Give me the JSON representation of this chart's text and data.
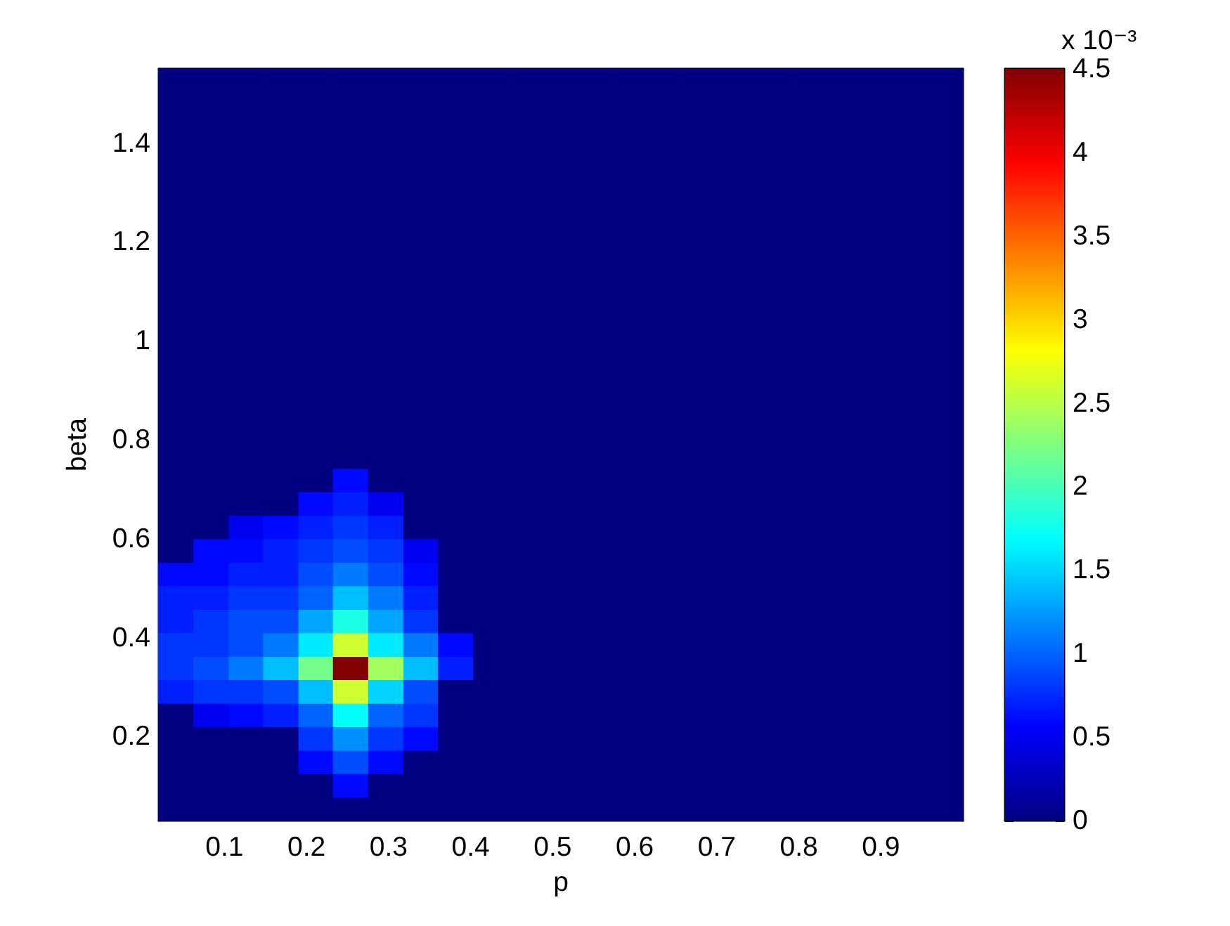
{
  "chart_data": {
    "type": "scatter",
    "marker": "square",
    "xlabel": "p",
    "ylabel": "beta",
    "clabel": "x 10⁻³",
    "x": [
      0.041,
      0.084,
      0.127,
      0.169,
      0.212,
      0.254,
      0.297,
      0.34,
      0.382,
      0.425,
      0.467,
      0.51,
      0.553,
      0.595,
      0.638,
      0.68,
      0.723,
      0.766,
      0.808,
      0.851,
      0.894,
      0.936,
      0.979,
      0.041,
      0.084,
      0.127,
      0.169,
      0.212,
      0.254,
      0.297,
      0.34,
      0.382,
      0.425,
      0.467,
      0.51,
      0.553,
      0.595,
      0.638,
      0.68,
      0.723,
      0.766,
      0.808,
      0.851,
      0.894,
      0.936,
      0.979,
      0.041,
      0.084,
      0.127,
      0.169,
      0.212,
      0.254,
      0.297,
      0.34,
      0.382,
      0.425,
      0.467,
      0.51,
      0.553,
      0.595,
      0.638,
      0.68,
      0.723,
      0.766,
      0.808,
      0.851,
      0.894,
      0.936,
      0.979,
      0.041,
      0.084,
      0.127,
      0.169,
      0.212,
      0.254,
      0.297,
      0.34,
      0.382,
      0.425,
      0.467,
      0.51,
      0.553,
      0.595,
      0.638,
      0.68,
      0.723,
      0.766,
      0.808,
      0.851,
      0.894,
      0.936,
      0.979,
      0.041,
      0.084,
      0.127,
      0.169,
      0.212,
      0.254,
      0.297,
      0.34,
      0.382,
      0.425,
      0.467,
      0.51,
      0.553,
      0.595,
      0.638,
      0.68,
      0.723,
      0.766,
      0.808,
      0.851,
      0.894,
      0.936,
      0.979,
      0.041,
      0.084,
      0.127,
      0.169,
      0.212,
      0.254,
      0.297,
      0.34,
      0.382,
      0.425,
      0.467,
      0.51,
      0.553,
      0.595,
      0.638,
      0.68,
      0.723,
      0.766,
      0.808,
      0.851,
      0.894,
      0.936,
      0.979,
      0.041,
      0.084,
      0.127,
      0.169,
      0.212,
      0.254,
      0.297,
      0.34,
      0.382,
      0.425,
      0.467,
      0.51,
      0.553,
      0.595,
      0.638,
      0.68,
      0.723,
      0.766,
      0.808,
      0.851,
      0.894,
      0.936,
      0.979,
      0.041,
      0.084,
      0.127,
      0.169,
      0.212,
      0.254,
      0.297,
      0.34,
      0.382,
      0.425,
      0.467,
      0.51,
      0.553,
      0.595,
      0.638,
      0.68,
      0.723,
      0.766,
      0.808,
      0.851,
      0.894,
      0.936,
      0.979,
      0.041,
      0.084,
      0.127,
      0.169,
      0.212,
      0.254,
      0.297,
      0.34,
      0.382,
      0.425,
      0.467,
      0.51,
      0.553,
      0.595,
      0.638,
      0.68,
      0.723,
      0.766,
      0.808,
      0.851,
      0.894,
      0.936,
      0.979,
      0.041,
      0.084,
      0.127,
      0.169,
      0.212,
      0.254,
      0.297,
      0.34,
      0.382,
      0.425,
      0.467,
      0.51,
      0.553,
      0.595,
      0.638,
      0.68,
      0.723,
      0.766,
      0.808,
      0.851,
      0.894,
      0.936,
      0.979,
      0.041,
      0.084,
      0.127,
      0.169,
      0.212,
      0.254,
      0.297,
      0.34,
      0.382,
      0.425,
      0.467,
      0.51,
      0.553,
      0.595,
      0.638,
      0.68,
      0.723,
      0.766,
      0.808,
      0.851,
      0.894,
      0.936,
      0.979,
      0.041,
      0.084,
      0.127,
      0.169,
      0.212,
      0.254,
      0.297,
      0.34,
      0.382,
      0.425,
      0.467,
      0.51,
      0.553,
      0.595,
      0.638,
      0.68,
      0.723,
      0.766,
      0.808,
      0.851,
      0.894,
      0.936,
      0.979,
      0.041,
      0.084,
      0.127,
      0.169,
      0.212,
      0.254,
      0.297,
      0.34,
      0.382,
      0.425,
      0.467,
      0.51,
      0.553,
      0.595,
      0.638,
      0.68,
      0.723,
      0.766,
      0.808,
      0.851,
      0.894,
      0.936,
      0.979,
      0.041,
      0.084,
      0.127,
      0.169,
      0.212,
      0.254,
      0.297,
      0.34,
      0.382,
      0.425,
      0.467,
      0.51,
      0.553,
      0.595,
      0.638,
      0.68,
      0.723,
      0.766,
      0.808,
      0.851,
      0.894,
      0.936,
      0.979,
      0.041,
      0.084,
      0.127,
      0.169,
      0.212,
      0.254,
      0.297,
      0.34,
      0.382,
      0.425,
      0.467,
      0.51,
      0.553,
      0.595,
      0.638,
      0.68,
      0.723,
      0.766,
      0.808,
      0.851,
      0.894,
      0.936,
      0.979,
      0.041,
      0.084,
      0.127,
      0.169,
      0.212,
      0.254,
      0.297,
      0.34,
      0.382,
      0.425,
      0.467,
      0.51,
      0.553,
      0.595,
      0.638,
      0.68,
      0.723,
      0.766,
      0.808,
      0.851,
      0.894,
      0.936,
      0.979,
      0.041,
      0.084,
      0.127,
      0.169,
      0.212,
      0.254,
      0.297,
      0.34,
      0.382,
      0.425,
      0.467,
      0.51,
      0.553,
      0.595,
      0.638,
      0.68,
      0.723,
      0.766,
      0.808,
      0.851,
      0.894,
      0.936,
      0.979,
      0.041,
      0.084,
      0.127,
      0.169,
      0.212,
      0.254,
      0.297,
      0.34,
      0.382,
      0.425,
      0.467,
      0.51,
      0.553,
      0.595,
      0.638,
      0.68,
      0.723,
      0.766,
      0.808,
      0.851,
      0.894,
      0.936,
      0.979,
      0.041,
      0.084,
      0.127,
      0.169,
      0.212,
      0.254,
      0.297,
      0.34,
      0.382,
      0.425,
      0.467,
      0.51,
      0.553,
      0.595,
      0.638,
      0.68,
      0.723,
      0.766,
      0.808,
      0.851,
      0.894,
      0.936,
      0.979,
      0.041,
      0.084,
      0.127,
      0.169,
      0.212,
      0.254,
      0.297,
      0.34,
      0.382,
      0.425,
      0.467,
      0.51,
      0.553,
      0.595,
      0.638,
      0.68,
      0.723,
      0.766,
      0.808,
      0.851,
      0.894,
      0.936,
      0.979,
      0.041,
      0.084,
      0.127,
      0.169,
      0.212,
      0.254,
      0.297,
      0.34,
      0.382,
      0.425,
      0.467,
      0.51,
      0.553,
      0.595,
      0.638,
      0.68,
      0.723,
      0.766,
      0.808,
      0.851,
      0.894,
      0.936,
      0.979,
      0.041,
      0.084,
      0.127,
      0.169,
      0.212,
      0.254,
      0.297,
      0.34,
      0.382,
      0.425,
      0.467,
      0.51,
      0.553,
      0.595,
      0.638,
      0.68,
      0.723,
      0.766,
      0.808,
      0.851,
      0.894,
      0.936,
      0.979,
      0.041,
      0.084,
      0.127,
      0.169,
      0.212,
      0.254,
      0.297,
      0.34,
      0.382,
      0.425,
      0.467,
      0.51,
      0.553,
      0.595,
      0.638,
      0.68,
      0.723,
      0.766,
      0.808,
      0.851,
      0.894,
      0.936,
      0.979,
      0.041,
      0.084,
      0.127,
      0.169,
      0.212,
      0.254,
      0.297,
      0.34,
      0.382,
      0.425,
      0.467,
      0.51,
      0.553,
      0.595,
      0.638,
      0.68,
      0.723,
      0.766,
      0.808,
      0.851,
      0.894,
      0.936,
      0.979,
      0.041,
      0.084,
      0.127,
      0.169,
      0.212,
      0.254,
      0.297,
      0.34,
      0.382,
      0.425,
      0.467,
      0.51,
      0.553,
      0.595,
      0.638,
      0.68,
      0.723,
      0.766,
      0.808,
      0.851,
      0.894,
      0.936,
      0.979,
      0.041,
      0.084,
      0.127,
      0.169,
      0.212,
      0.254,
      0.297,
      0.34,
      0.382,
      0.425,
      0.467,
      0.51,
      0.553,
      0.595,
      0.638,
      0.68,
      0.723,
      0.766,
      0.808,
      0.851,
      0.894,
      0.936,
      0.979,
      0.041,
      0.084,
      0.127,
      0.169,
      0.212,
      0.254,
      0.297,
      0.34,
      0.382,
      0.425,
      0.467,
      0.51,
      0.553,
      0.595,
      0.638,
      0.68,
      0.723,
      0.766,
      0.808,
      0.851,
      0.894,
      0.936,
      0.979,
      0.041,
      0.084,
      0.127,
      0.169,
      0.212,
      0.254,
      0.297,
      0.34,
      0.382,
      0.425,
      0.467,
      0.51,
      0.553,
      0.595,
      0.638,
      0.68,
      0.723,
      0.766,
      0.808,
      0.851,
      0.894,
      0.936,
      0.979,
      0.041,
      0.084,
      0.127,
      0.169,
      0.212,
      0.254,
      0.297,
      0.34,
      0.382,
      0.425,
      0.467,
      0.51,
      0.553,
      0.595,
      0.638,
      0.68,
      0.723,
      0.766,
      0.808,
      0.851,
      0.894,
      0.936,
      0.979,
      0.041,
      0.084,
      0.127,
      0.169,
      0.212,
      0.254,
      0.297,
      0.34,
      0.382,
      0.425,
      0.467,
      0.51,
      0.553,
      0.595,
      0.638,
      0.68,
      0.723,
      0.766,
      0.808,
      0.851,
      0.894,
      0.936,
      0.979,
      0.041,
      0.084,
      0.127,
      0.169,
      0.212,
      0.254,
      0.297,
      0.34,
      0.382,
      0.425,
      0.467,
      0.51,
      0.553,
      0.595,
      0.638,
      0.68,
      0.723,
      0.766,
      0.808,
      0.851,
      0.894,
      0.936,
      0.979,
      0.041,
      0.084,
      0.127,
      0.169,
      0.212,
      0.254,
      0.297,
      0.34,
      0.382,
      0.425,
      0.467,
      0.51,
      0.553,
      0.595,
      0.638,
      0.68,
      0.723,
      0.766,
      0.808,
      0.851,
      0.894,
      0.936,
      0.979
    ],
    "values": [
      0.054,
      0.054,
      0.054,
      0.054,
      0.054,
      0.054,
      0.054,
      0.054,
      0.054,
      0.054,
      0.054,
      0.054,
      0.054,
      0.054,
      0.054,
      0.054,
      0.054,
      0.054,
      0.054,
      0.054,
      0.054,
      0.054,
      0.054,
      0.101,
      0.101,
      0.101,
      0.101,
      0.101,
      0.101,
      0.101,
      0.101,
      0.101,
      0.101,
      0.101,
      0.101,
      0.101,
      0.101,
      0.101,
      0.101,
      0.101,
      0.101,
      0.101,
      0.101,
      0.101,
      0.101,
      0.101,
      0.149,
      0.149,
      0.149,
      0.149,
      0.149,
      0.149,
      0.149,
      0.149,
      0.149,
      0.149,
      0.149,
      0.149,
      0.149,
      0.149,
      0.149,
      0.149,
      0.149,
      0.149,
      0.149,
      0.149,
      0.149,
      0.149,
      0.149,
      0.196,
      0.196,
      0.196,
      0.196,
      0.196,
      0.196,
      0.196,
      0.196,
      0.196,
      0.196,
      0.196,
      0.196,
      0.196,
      0.196,
      0.196,
      0.196,
      0.196,
      0.196,
      0.196,
      0.196,
      0.196,
      0.196,
      0.196,
      0.244,
      0.244,
      0.244,
      0.244,
      0.244,
      0.244,
      0.244,
      0.244,
      0.244,
      0.244,
      0.244,
      0.244,
      0.244,
      0.244,
      0.244,
      0.244,
      0.244,
      0.244,
      0.244,
      0.244,
      0.244,
      0.244,
      0.244,
      0.291,
      0.291,
      0.291,
      0.291,
      0.291,
      0.291,
      0.291,
      0.291,
      0.291,
      0.291,
      0.291,
      0.291,
      0.291,
      0.291,
      0.291,
      0.291,
      0.291,
      0.291,
      0.291,
      0.291,
      0.291,
      0.291,
      0.291,
      0.339,
      0.339,
      0.339,
      0.339,
      0.339,
      0.339,
      0.339,
      0.339,
      0.339,
      0.339,
      0.339,
      0.339,
      0.339,
      0.339,
      0.339,
      0.339,
      0.339,
      0.339,
      0.339,
      0.339,
      0.339,
      0.339,
      0.339,
      0.386,
      0.386,
      0.386,
      0.386,
      0.386,
      0.386,
      0.386,
      0.386,
      0.386,
      0.386,
      0.386,
      0.386,
      0.386,
      0.386,
      0.386,
      0.386,
      0.386,
      0.386,
      0.386,
      0.386,
      0.386,
      0.386,
      0.386,
      0.434,
      0.434,
      0.434,
      0.434,
      0.434,
      0.434,
      0.434,
      0.434,
      0.434,
      0.434,
      0.434,
      0.434,
      0.434,
      0.434,
      0.434,
      0.434,
      0.434,
      0.434,
      0.434,
      0.434,
      0.434,
      0.434,
      0.434,
      0.481,
      0.481,
      0.481,
      0.481,
      0.481,
      0.481,
      0.481,
      0.481,
      0.481,
      0.481,
      0.481,
      0.481,
      0.481,
      0.481,
      0.481,
      0.481,
      0.481,
      0.481,
      0.481,
      0.481,
      0.481,
      0.481,
      0.481,
      0.529,
      0.529,
      0.529,
      0.529,
      0.529,
      0.529,
      0.529,
      0.529,
      0.529,
      0.529,
      0.529,
      0.529,
      0.529,
      0.529,
      0.529,
      0.529,
      0.529,
      0.529,
      0.529,
      0.529,
      0.529,
      0.529,
      0.529,
      0.576,
      0.576,
      0.576,
      0.576,
      0.576,
      0.576,
      0.576,
      0.576,
      0.576,
      0.576,
      0.576,
      0.576,
      0.576,
      0.576,
      0.576,
      0.576,
      0.576,
      0.576,
      0.576,
      0.576,
      0.576,
      0.576,
      0.576,
      0.624,
      0.624,
      0.624,
      0.624,
      0.624,
      0.624,
      0.624,
      0.624,
      0.624,
      0.624,
      0.624,
      0.624,
      0.624,
      0.624,
      0.624,
      0.624,
      0.624,
      0.624,
      0.624,
      0.624,
      0.624,
      0.624,
      0.624,
      0.671,
      0.671,
      0.671,
      0.671,
      0.671,
      0.671,
      0.671,
      0.671,
      0.671,
      0.671,
      0.671,
      0.671,
      0.671,
      0.671,
      0.671,
      0.671,
      0.671,
      0.671,
      0.671,
      0.671,
      0.671,
      0.671,
      0.671,
      0.719,
      0.719,
      0.719,
      0.719,
      0.719,
      0.719,
      0.719,
      0.719,
      0.719,
      0.719,
      0.719,
      0.719,
      0.719,
      0.719,
      0.719,
      0.719,
      0.719,
      0.719,
      0.719,
      0.719,
      0.719,
      0.719,
      0.719,
      0.766,
      0.766,
      0.766,
      0.766,
      0.766,
      0.766,
      0.766,
      0.766,
      0.766,
      0.766,
      0.766,
      0.766,
      0.766,
      0.766,
      0.766,
      0.766,
      0.766,
      0.766,
      0.766,
      0.766,
      0.766,
      0.766,
      0.766,
      0.814,
      0.814,
      0.814,
      0.814,
      0.814,
      0.814,
      0.814,
      0.814,
      0.814,
      0.814,
      0.814,
      0.814,
      0.814,
      0.814,
      0.814,
      0.814,
      0.814,
      0.814,
      0.814,
      0.814,
      0.814,
      0.814,
      0.814,
      0.861,
      0.861,
      0.861,
      0.861,
      0.861,
      0.861,
      0.861,
      0.861,
      0.861,
      0.861,
      0.861,
      0.861,
      0.861,
      0.861,
      0.861,
      0.861,
      0.861,
      0.861,
      0.861,
      0.861,
      0.861,
      0.861,
      0.861,
      0.909,
      0.909,
      0.909,
      0.909,
      0.909,
      0.909,
      0.909,
      0.909,
      0.909,
      0.909,
      0.909,
      0.909,
      0.909,
      0.909,
      0.909,
      0.909,
      0.909,
      0.909,
      0.909,
      0.909,
      0.909,
      0.909,
      0.909,
      0.956,
      0.956,
      0.956,
      0.956,
      0.956,
      0.956,
      0.956,
      0.956,
      0.956,
      0.956,
      0.956,
      0.956,
      0.956,
      0.956,
      0.956,
      0.956,
      0.956,
      0.956,
      0.956,
      0.956,
      0.956,
      0.956,
      0.956,
      1.004,
      1.004,
      1.004,
      1.004,
      1.004,
      1.004,
      1.004,
      1.004,
      1.004,
      1.004,
      1.004,
      1.004,
      1.004,
      1.004,
      1.004,
      1.004,
      1.004,
      1.004,
      1.004,
      1.004,
      1.004,
      1.004,
      1.004,
      1.051,
      1.051,
      1.051,
      1.051,
      1.051,
      1.051,
      1.051,
      1.051,
      1.051,
      1.051,
      1.051,
      1.051,
      1.051,
      1.051,
      1.051,
      1.051,
      1.051,
      1.051,
      1.051,
      1.051,
      1.051,
      1.051,
      1.051,
      1.099,
      1.099,
      1.099,
      1.099,
      1.099,
      1.099,
      1.099,
      1.099,
      1.099,
      1.099,
      1.099,
      1.099,
      1.099,
      1.099,
      1.099,
      1.099,
      1.099,
      1.099,
      1.099,
      1.099,
      1.099,
      1.099,
      1.099,
      1.146,
      1.146,
      1.146,
      1.146,
      1.146,
      1.146,
      1.146,
      1.146,
      1.146,
      1.146,
      1.146,
      1.146,
      1.146,
      1.146,
      1.146,
      1.146,
      1.146,
      1.146,
      1.146,
      1.146,
      1.146,
      1.146,
      1.146,
      1.194,
      1.194,
      1.194,
      1.194,
      1.194,
      1.194,
      1.194,
      1.194,
      1.194,
      1.194,
      1.194,
      1.194,
      1.194,
      1.194,
      1.194,
      1.194,
      1.194,
      1.194,
      1.194,
      1.194,
      1.194,
      1.194,
      1.194,
      1.241,
      1.241,
      1.241,
      1.241,
      1.241,
      1.241,
      1.241,
      1.241,
      1.241,
      1.241,
      1.241,
      1.241,
      1.241,
      1.241,
      1.241,
      1.241,
      1.241,
      1.241,
      1.241,
      1.241,
      1.241,
      1.241,
      1.241,
      1.289,
      1.289,
      1.289,
      1.289,
      1.289,
      1.289,
      1.289,
      1.289,
      1.289,
      1.289,
      1.289,
      1.289,
      1.289,
      1.289,
      1.289,
      1.289,
      1.289,
      1.289,
      1.289,
      1.289,
      1.289,
      1.289,
      1.289,
      1.336,
      1.336,
      1.336,
      1.336,
      1.336,
      1.336,
      1.336,
      1.336,
      1.336,
      1.336,
      1.336,
      1.336,
      1.336,
      1.336,
      1.336,
      1.336,
      1.336,
      1.336,
      1.336,
      1.336,
      1.336,
      1.336,
      1.336,
      1.384,
      1.384,
      1.384,
      1.384,
      1.384,
      1.384,
      1.384,
      1.384,
      1.384,
      1.384,
      1.384,
      1.384,
      1.384,
      1.384,
      1.384,
      1.384,
      1.384,
      1.384,
      1.384,
      1.384,
      1.384,
      1.384,
      1.384,
      1.431,
      1.431,
      1.431,
      1.431,
      1.431,
      1.431,
      1.431,
      1.431,
      1.431,
      1.431,
      1.431,
      1.431,
      1.431,
      1.431,
      1.431,
      1.431,
      1.431,
      1.431,
      1.431,
      1.431,
      1.431,
      1.431,
      1.431,
      1.479,
      1.479,
      1.479,
      1.479,
      1.479,
      1.479,
      1.479,
      1.479,
      1.479,
      1.479,
      1.479,
      1.479,
      1.479,
      1.479,
      1.479,
      1.479,
      1.479,
      1.479,
      1.479,
      1.479,
      1.479,
      1.479,
      1.479,
      1.526,
      1.526,
      1.526,
      1.526,
      1.526,
      1.526,
      1.526,
      1.526,
      1.526,
      1.526,
      1.526,
      1.526,
      1.526,
      1.526,
      1.526,
      1.526,
      1.526,
      1.526,
      1.526,
      1.526,
      1.526,
      1.526,
      1.526
    ],
    "cvalues": [
      0,
      0,
      0,
      0,
      0,
      0,
      0,
      0,
      0,
      0,
      0,
      0,
      0,
      0,
      0,
      0,
      0,
      0,
      0,
      0,
      0,
      0,
      0,
      0,
      0,
      0,
      0,
      0,
      0.6,
      0,
      0,
      0,
      0,
      0,
      0,
      0,
      0,
      0,
      0,
      0,
      0,
      0,
      0,
      0,
      0,
      0,
      0,
      0,
      0,
      0,
      0.6,
      0.9,
      0.6,
      0,
      0,
      0,
      0,
      0,
      0,
      0,
      0,
      0,
      0,
      0,
      0,
      0,
      0,
      0,
      0,
      0,
      0,
      0,
      0,
      0.8,
      1.2,
      0.8,
      0.6,
      0,
      0,
      0,
      0,
      0,
      0,
      0,
      0,
      0,
      0,
      0,
      0,
      0,
      0,
      0,
      0,
      0.5,
      0.6,
      0.7,
      1.0,
      1.7,
      1.0,
      0.8,
      0,
      0,
      0,
      0,
      0,
      0,
      0,
      0,
      0,
      0,
      0,
      0,
      0,
      0,
      0,
      0.7,
      0.8,
      0.8,
      0.9,
      1.4,
      2.6,
      1.5,
      0.9,
      0,
      0,
      0,
      0,
      0,
      0,
      0,
      0,
      0,
      0,
      0,
      0,
      0,
      0,
      0,
      0.8,
      0.9,
      1.1,
      1.4,
      2.2,
      4.5,
      2.4,
      1.4,
      0.7,
      0,
      0,
      0,
      0,
      0,
      0,
      0,
      0,
      0,
      0,
      0,
      0,
      0,
      0,
      0.8,
      0.8,
      0.9,
      1.1,
      1.6,
      2.6,
      1.6,
      1.1,
      0.6,
      0,
      0,
      0,
      0,
      0,
      0,
      0,
      0,
      0,
      0,
      0,
      0,
      0,
      0,
      0.7,
      0.8,
      0.9,
      0.9,
      1.3,
      1.8,
      1.3,
      0.8,
      0,
      0,
      0,
      0,
      0,
      0,
      0,
      0,
      0,
      0,
      0,
      0,
      0,
      0,
      0,
      0.7,
      0.7,
      0.8,
      0.8,
      1.0,
      1.4,
      1.1,
      0.7,
      0,
      0,
      0,
      0,
      0,
      0,
      0,
      0,
      0,
      0,
      0,
      0,
      0,
      0,
      0,
      0.6,
      0.6,
      0.7,
      0.7,
      0.9,
      1.1,
      0.9,
      0.6,
      0,
      0,
      0,
      0,
      0,
      0,
      0,
      0,
      0,
      0,
      0,
      0,
      0,
      0,
      0,
      0,
      0.6,
      0.6,
      0.7,
      0.8,
      0.9,
      0.8,
      0.5,
      0,
      0,
      0,
      0,
      0,
      0,
      0,
      0,
      0,
      0,
      0,
      0,
      0,
      0,
      0,
      0,
      0,
      0.5,
      0.6,
      0.7,
      0.8,
      0.7,
      0,
      0,
      0,
      0,
      0,
      0,
      0,
      0,
      0,
      0,
      0,
      0,
      0,
      0,
      0,
      0,
      0,
      0,
      0,
      0,
      0.6,
      0.7,
      0.5,
      0,
      0,
      0,
      0,
      0,
      0,
      0,
      0,
      0,
      0,
      0,
      0,
      0,
      0,
      0,
      0,
      0,
      0,
      0,
      0,
      0,
      0.6,
      0,
      0,
      0,
      0,
      0,
      0,
      0,
      0,
      0,
      0,
      0,
      0,
      0,
      0,
      0,
      0,
      0,
      0,
      0,
      0,
      0,
      0,
      0,
      0,
      0,
      0,
      0,
      0,
      0,
      0,
      0,
      0,
      0,
      0,
      0,
      0,
      0,
      0,
      0,
      0,
      0,
      0,
      0,
      0,
      0,
      0,
      0,
      0,
      0,
      0,
      0,
      0,
      0,
      0,
      0,
      0,
      0,
      0,
      0,
      0,
      0,
      0,
      0,
      0,
      0,
      0,
      0,
      0,
      0,
      0,
      0,
      0,
      0,
      0,
      0,
      0,
      0,
      0,
      0,
      0,
      0,
      0,
      0,
      0,
      0,
      0,
      0,
      0,
      0,
      0,
      0,
      0,
      0,
      0,
      0,
      0,
      0,
      0,
      0,
      0,
      0,
      0,
      0,
      0,
      0,
      0,
      0,
      0,
      0,
      0,
      0,
      0,
      0,
      0,
      0,
      0,
      0,
      0,
      0,
      0,
      0,
      0,
      0,
      0,
      0,
      0,
      0,
      0,
      0,
      0,
      0,
      0,
      0,
      0,
      0,
      0,
      0,
      0,
      0,
      0,
      0,
      0,
      0,
      0,
      0,
      0,
      0,
      0,
      0,
      0,
      0,
      0,
      0,
      0,
      0,
      0,
      0,
      0,
      0,
      0,
      0,
      0,
      0,
      0,
      0,
      0,
      0,
      0,
      0,
      0,
      0,
      0,
      0,
      0,
      0,
      0,
      0,
      0,
      0,
      0,
      0,
      0,
      0,
      0,
      0,
      0,
      0,
      0,
      0,
      0,
      0,
      0,
      0,
      0,
      0,
      0,
      0,
      0,
      0,
      0,
      0,
      0,
      0,
      0,
      0,
      0,
      0,
      0,
      0,
      0,
      0,
      0,
      0,
      0,
      0,
      0,
      0,
      0,
      0,
      0,
      0,
      0,
      0,
      0,
      0,
      0,
      0,
      0,
      0,
      0,
      0,
      0,
      0,
      0,
      0,
      0,
      0,
      0,
      0,
      0,
      0,
      0,
      0,
      0,
      0,
      0,
      0,
      0,
      0,
      0,
      0,
      0,
      0,
      0,
      0,
      0,
      0,
      0,
      0,
      0,
      0,
      0,
      0,
      0,
      0,
      0,
      0,
      0,
      0,
      0,
      0,
      0,
      0,
      0,
      0,
      0,
      0,
      0,
      0,
      0,
      0,
      0,
      0,
      0,
      0,
      0,
      0,
      0,
      0,
      0,
      0,
      0,
      0,
      0,
      0,
      0,
      0,
      0,
      0,
      0,
      0,
      0,
      0,
      0,
      0,
      0,
      0,
      0,
      0,
      0,
      0,
      0,
      0,
      0,
      0,
      0,
      0,
      0,
      0,
      0,
      0,
      0,
      0,
      0,
      0,
      0,
      0,
      0,
      0,
      0,
      0,
      0,
      0,
      0,
      0,
      0,
      0,
      0,
      0,
      0,
      0,
      0,
      0,
      0,
      0,
      0,
      0,
      0,
      0,
      0,
      0,
      0,
      0,
      0,
      0,
      0,
      0,
      0,
      0,
      0,
      0,
      0,
      0,
      0,
      0,
      0,
      0,
      0,
      0,
      0,
      0,
      0,
      0,
      0,
      0,
      0,
      0,
      0,
      0,
      0,
      0,
      0,
      0,
      0,
      0,
      0,
      0,
      0,
      0,
      0,
      0,
      0,
      0,
      0,
      0,
      0,
      0,
      0,
      0,
      0,
      0,
      0,
      0,
      0,
      0,
      0,
      0,
      0
    ],
    "xlim": [
      0.02,
      1
    ],
    "xticks": [
      0.1,
      0.2,
      0.3,
      0.4,
      0.5,
      0.6,
      0.7,
      0.8,
      0.9
    ],
    "ylim": [
      0.03,
      1.55
    ],
    "yticks": [
      0.2,
      0.4,
      0.6,
      0.8,
      1,
      1.2,
      1.4
    ],
    "clim": [
      0,
      4.5
    ],
    "cticks": [
      0,
      0.5,
      1,
      1.5,
      2,
      2.5,
      3,
      3.5,
      4,
      4.5
    ]
  }
}
